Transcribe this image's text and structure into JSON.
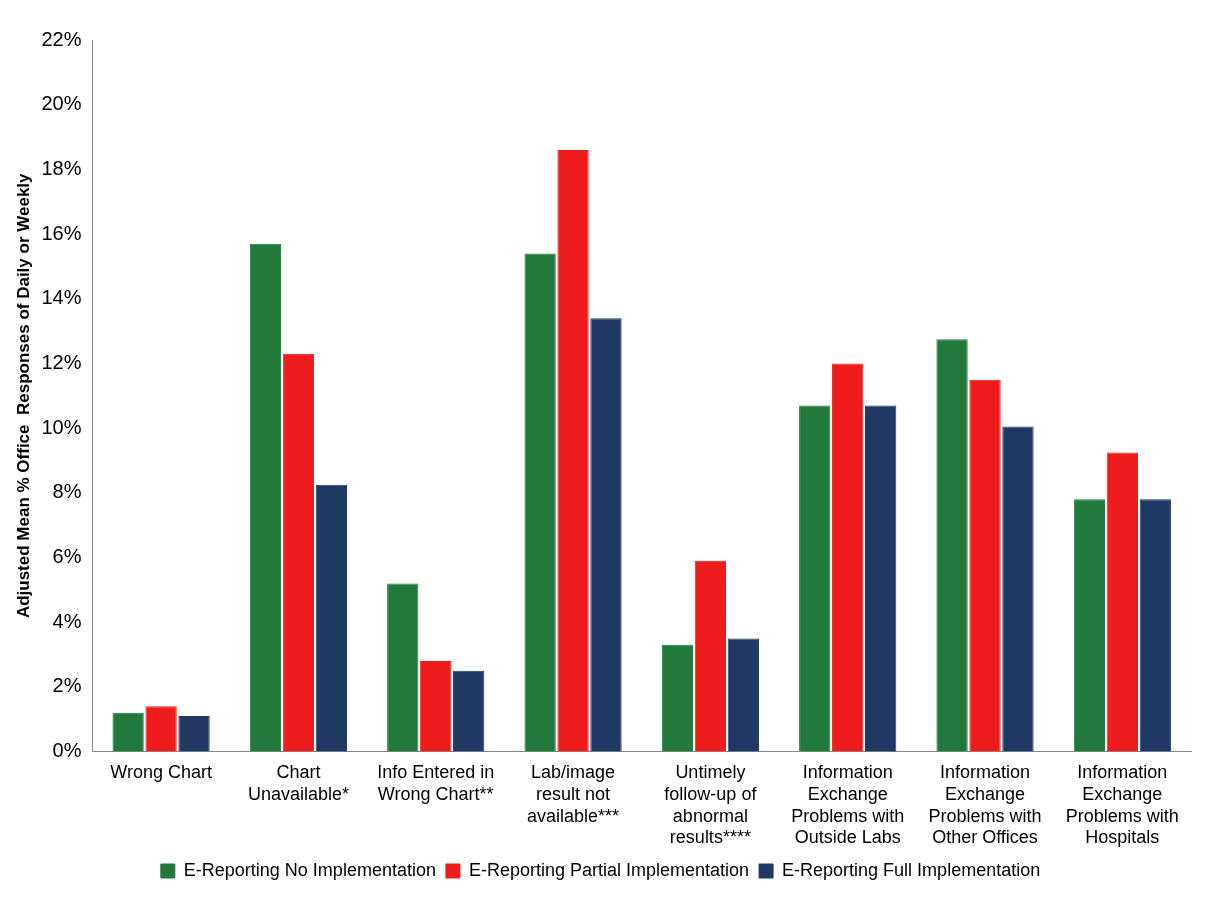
{
  "chart_data": {
    "type": "bar",
    "ylabel": "Adjusted Mean % Office  Responses of Daily or Weekly",
    "categories": [
      "Wrong Chart",
      "Chart Unavailable*",
      "Info Entered in Wrong Chart**",
      "Lab/image result not available***",
      "Untimely follow-up of abnormal results****",
      "Information Exchange Problems with Outside Labs",
      "Information Exchange Problems with Other Offices",
      "Information Exchange Problems with Hospitals"
    ],
    "series": [
      {
        "name": "E-Reporting No Implementation",
        "color": "#217a3c",
        "values": [
          1.2,
          15.7,
          5.2,
          15.4,
          3.3,
          10.7,
          12.75,
          7.8
        ]
      },
      {
        "name": "E-Reporting Partial Implementation",
        "color": "#ee1c1c",
        "values": [
          1.4,
          12.3,
          2.8,
          18.6,
          5.9,
          12.0,
          11.5,
          9.25
        ]
      },
      {
        "name": "E-Reporting Full Implementation",
        "color": "#1f3864",
        "values": [
          1.1,
          8.25,
          2.5,
          13.4,
          3.5,
          10.7,
          10.05,
          7.8
        ]
      }
    ],
    "ylim": [
      0,
      22
    ],
    "yticks": [
      {
        "value": 0,
        "label": "0%"
      },
      {
        "value": 2,
        "label": "2%"
      },
      {
        "value": 4,
        "label": "4%"
      },
      {
        "value": 6,
        "label": "6%"
      },
      {
        "value": 8,
        "label": "8%"
      },
      {
        "value": 10,
        "label": "10%"
      },
      {
        "value": 12,
        "label": "12%"
      },
      {
        "value": 14,
        "label": "14%"
      },
      {
        "value": 16,
        "label": "16%"
      },
      {
        "value": 18,
        "label": "18%"
      },
      {
        "value": 20,
        "label": "20%"
      },
      {
        "value": 22,
        "label": "22%"
      }
    ],
    "grid": false,
    "legend": "bottom"
  }
}
